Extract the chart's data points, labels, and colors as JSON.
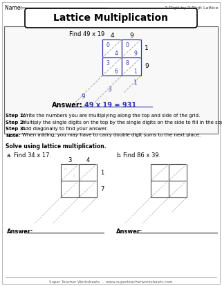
{
  "title": "Lattice Multiplication",
  "bg_color": "#ffffff",
  "name_line": "Name: ",
  "top_right": "2-Digit by 2-Digit Lattice",
  "find_text": "Find 49 x 19",
  "answer_text": "Answer:",
  "answer_value": "49 x 19 = 931",
  "step1_label": "Step 1:",
  "step1": "Write the numbers you are multiplying along the top and side of the grid.",
  "step2_label": "Step 2:",
  "step2": "Multiply the single digits on the top by the single digits on the side to fill in the squares.",
  "step3_label": "Step 3:",
  "step3": "Add diagonally to find your answer.",
  "note_label": "Note:",
  "note": "When adding, you may have to carry double digit sums to the next place.",
  "solve_text": "Solve using lattice multiplication.",
  "a_label": "a.",
  "a_find": "Find 34 x 17.",
  "b_label": "b.",
  "b_find": "Find 86 x 39.",
  "answer_label": "Answer:",
  "footer": "Super Teacher Worksheets  -  www.superteacherworksheets.com",
  "grid_color": "#3333aa",
  "diag_color": "#aaaaaa",
  "num_color": "#3333aa",
  "answer_color": "#3333aa",
  "gray_color": "#555555"
}
